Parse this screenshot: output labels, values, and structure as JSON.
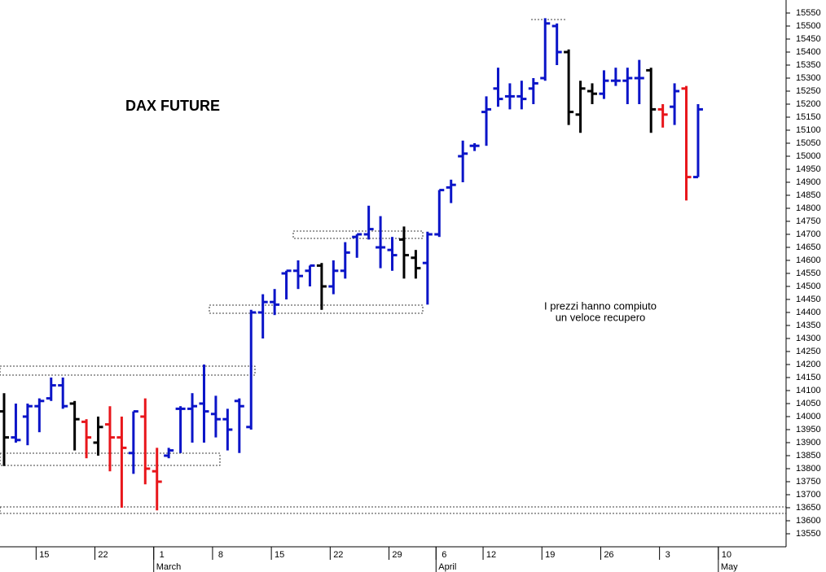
{
  "chart_data": {
    "type": "ohlc",
    "title": "DAX FUTURE",
    "annotation": [
      "I prezzi hanno compiuto",
      "un veloce recupero"
    ],
    "categories": [
      null,
      null,
      null,
      "15",
      null,
      null,
      null,
      null,
      "22",
      null,
      null,
      null,
      null,
      "1",
      null,
      null,
      null,
      null,
      "8",
      null,
      null,
      null,
      null,
      "15",
      null,
      null,
      null,
      null,
      "22",
      null,
      null,
      null,
      null,
      "29",
      null,
      null,
      null,
      "6",
      null,
      null,
      null,
      "12",
      null,
      null,
      null,
      null,
      "19",
      null,
      null,
      null,
      null,
      "26",
      null,
      null,
      null,
      null,
      "3",
      null,
      null,
      null,
      null,
      "10",
      null,
      null,
      null,
      null
    ],
    "months": [
      null,
      null,
      null,
      null,
      null,
      null,
      null,
      null,
      null,
      null,
      null,
      null,
      null,
      "March",
      null,
      null,
      null,
      null,
      null,
      null,
      null,
      null,
      null,
      null,
      null,
      null,
      null,
      null,
      null,
      null,
      null,
      null,
      null,
      null,
      null,
      null,
      null,
      "April",
      null,
      null,
      null,
      null,
      null,
      null,
      null,
      null,
      null,
      null,
      null,
      null,
      null,
      null,
      null,
      null,
      null,
      null,
      null,
      null,
      null,
      null,
      null,
      "May",
      null,
      null,
      null,
      null,
      null,
      null
    ],
    "open": [
      14020,
      13920,
      14000,
      14040,
      14070,
      14120,
      14050,
      13980,
      13900,
      13970,
      13920,
      13860,
      14000,
      13790,
      13850,
      14030,
      14030,
      14050,
      14010,
      13990,
      14060,
      13960,
      14400,
      14440,
      14550,
      14560,
      14560,
      14580,
      14500,
      14560,
      14690,
      14700,
      14650,
      14640,
      14680,
      14610,
      14590,
      14700,
      14880,
      15000,
      15040,
      15170,
      15260,
      15230,
      15230,
      15260,
      15300,
      15500,
      15400,
      15160,
      15250,
      15240,
      15290,
      15290,
      15300,
      15330,
      15180,
      15190,
      15260,
      14920,
      null,
      null,
      null,
      null,
      null,
      null
    ],
    "high": [
      14090,
      14050,
      14050,
      14070,
      14150,
      14150,
      14060,
      13990,
      14000,
      14040,
      14000,
      14020,
      14070,
      13880,
      13880,
      14040,
      14090,
      14200,
      14080,
      14030,
      14070,
      14410,
      14470,
      14490,
      14560,
      14600,
      14580,
      14590,
      14600,
      14670,
      14700,
      14810,
      14770,
      14690,
      14730,
      14640,
      14710,
      14870,
      14910,
      15060,
      15050,
      15230,
      15340,
      15280,
      15290,
      15300,
      15530,
      15510,
      15410,
      15290,
      15280,
      15330,
      15340,
      15340,
      15370,
      15340,
      15200,
      15280,
      15270,
      15200,
      null,
      null,
      null,
      null,
      null,
      null
    ],
    "low": [
      13810,
      13900,
      13890,
      13940,
      14060,
      14030,
      13870,
      13840,
      13850,
      13790,
      13650,
      13780,
      13740,
      13640,
      13840,
      13860,
      13900,
      13900,
      13920,
      13870,
      13860,
      13950,
      14300,
      14390,
      14450,
      14490,
      14500,
      14410,
      14470,
      14530,
      14610,
      14680,
      14570,
      14560,
      14530,
      14530,
      14430,
      14690,
      14820,
      14900,
      15020,
      15040,
      15190,
      15180,
      15180,
      15200,
      15290,
      15350,
      15120,
      15090,
      15200,
      15220,
      15270,
      15200,
      15200,
      15090,
      15110,
      15120,
      14830,
      14920,
      null,
      null,
      null,
      null,
      null,
      null
    ],
    "close": [
      13920,
      13910,
      14040,
      14060,
      14120,
      14040,
      13990,
      13920,
      13960,
      13920,
      13880,
      14020,
      13800,
      13750,
      13870,
      14030,
      14040,
      14020,
      13990,
      13950,
      14040,
      14400,
      14440,
      14430,
      14560,
      14540,
      14580,
      14500,
      14560,
      14630,
      14700,
      14720,
      14650,
      14620,
      14620,
      14570,
      14700,
      14870,
      14890,
      15010,
      15040,
      15180,
      15220,
      15230,
      15220,
      15280,
      15510,
      15400,
      15170,
      15260,
      15240,
      15290,
      15290,
      15300,
      15300,
      15180,
      15160,
      15250,
      14920,
      15180,
      null,
      null,
      null,
      null,
      null,
      null
    ],
    "colors": [
      "#000000",
      "#0a14c8",
      "#0a14c8",
      "#0a14c8",
      "#0a14c8",
      "#0a14c8",
      "#000000",
      "#e8161b",
      "#000000",
      "#e8161b",
      "#e8161b",
      "#0a14c8",
      "#e8161b",
      "#e8161b",
      "#0a14c8",
      "#0a14c8",
      "#0a14c8",
      "#0a14c8",
      "#0a14c8",
      "#0a14c8",
      "#0a14c8",
      "#0a14c8",
      "#0a14c8",
      "#0a14c8",
      "#0a14c8",
      "#0a14c8",
      "#0a14c8",
      "#000000",
      "#0a14c8",
      "#0a14c8",
      "#0a14c8",
      "#0a14c8",
      "#0a14c8",
      "#0a14c8",
      "#000000",
      "#000000",
      "#0a14c8",
      "#0a14c8",
      "#0a14c8",
      "#0a14c8",
      "#0a14c8",
      "#0a14c8",
      "#0a14c8",
      "#0a14c8",
      "#0a14c8",
      "#0a14c8",
      "#0a14c8",
      "#0a14c8",
      "#000000",
      "#000000",
      "#000000",
      "#0a14c8",
      "#0a14c8",
      "#0a14c8",
      "#0a14c8",
      "#000000",
      "#e8161b",
      "#0a14c8",
      "#e8161b",
      "#0a14c8",
      null,
      null,
      null,
      null,
      null,
      null
    ],
    "ylim": [
      13500,
      15600
    ],
    "yticks": [
      13550,
      13600,
      13650,
      13700,
      13750,
      13800,
      13850,
      13900,
      13950,
      14000,
      14050,
      14100,
      14150,
      14200,
      14250,
      14300,
      14350,
      14400,
      14450,
      14500,
      14550,
      14600,
      14650,
      14700,
      14750,
      14800,
      14850,
      14900,
      14950,
      15000,
      15050,
      15100,
      15150,
      15200,
      15250,
      15300,
      15350,
      15400,
      15450,
      15500,
      15550
    ]
  }
}
